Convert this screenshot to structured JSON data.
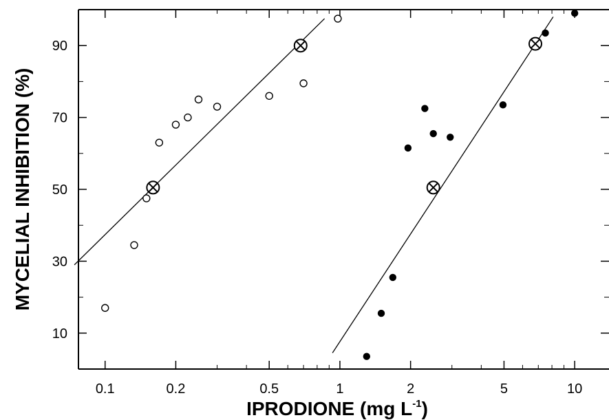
{
  "chart_data": {
    "type": "scatter",
    "title": "",
    "xlabel": "IPRODIONE (mg L",
    "xlabel_sup": "-1",
    "xlabel_close": ")",
    "ylabel": "MYCELIAL INHIBITION (%)",
    "x_scale": "log",
    "xlim": [
      0.077,
      14
    ],
    "ylim": [
      0,
      100
    ],
    "x_ticks": [
      {
        "value": 0.1,
        "label": "0.1"
      },
      {
        "value": 0.2,
        "label": "0.2"
      },
      {
        "value": 0.5,
        "label": "0.5"
      },
      {
        "value": 1,
        "label": "1"
      },
      {
        "value": 2,
        "label": "2"
      },
      {
        "value": 5,
        "label": "5"
      },
      {
        "value": 10,
        "label": "10"
      }
    ],
    "x_minor_ticks": [
      0.3,
      0.4,
      0.6,
      0.7,
      0.8,
      0.9,
      3,
      4,
      6,
      7,
      8,
      9
    ],
    "y_ticks": [
      {
        "value": 10,
        "label": "10"
      },
      {
        "value": 30,
        "label": "30"
      },
      {
        "value": 50,
        "label": "50"
      },
      {
        "value": 70,
        "label": "70"
      },
      {
        "value": 90,
        "label": "90"
      }
    ],
    "y_minor_ticks": [
      20,
      40,
      60,
      80
    ],
    "grid": false,
    "legend": "none",
    "series": [
      {
        "marker": "open-circle",
        "x": [
          0.1,
          0.133,
          0.15,
          0.17,
          0.2,
          0.225,
          0.25,
          0.3,
          0.5,
          0.7,
          0.98
        ],
        "y": [
          17,
          34.5,
          47.5,
          63,
          68,
          70,
          75,
          73,
          76,
          79.5,
          97.5
        ]
      },
      {
        "marker": "filled-circle",
        "x": [
          1.3,
          1.5,
          1.68,
          1.95,
          2.3,
          2.5,
          2.95,
          4.95,
          7.5,
          10.0
        ],
        "y": [
          3.5,
          15.5,
          25.5,
          61.5,
          72.5,
          65.5,
          64.5,
          73.5,
          93.5,
          99
        ]
      }
    ],
    "fit_lines": [
      {
        "x": [
          0.074,
          0.86
        ],
        "y": [
          29,
          97.5
        ]
      },
      {
        "x": [
          0.93,
          8.1
        ],
        "y": [
          4.5,
          98
        ]
      }
    ],
    "ec_markers": {
      "marker": "circled-x",
      "x": [
        0.16,
        0.68,
        2.5,
        6.8
      ],
      "y": [
        50.5,
        90,
        50.5,
        90.5
      ]
    }
  }
}
